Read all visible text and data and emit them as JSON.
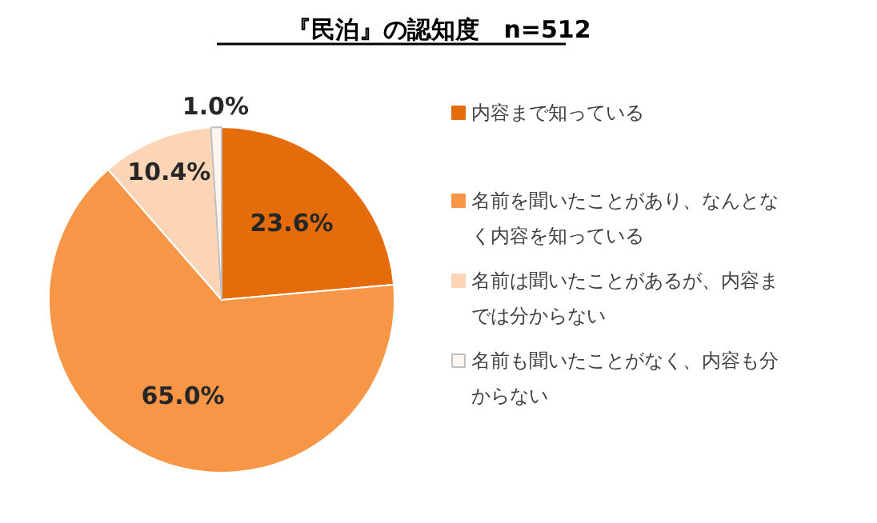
{
  "chart_data": {
    "type": "pie",
    "title": "『民泊』の認知度　n=512",
    "categories": [
      "内容まで知っている",
      "名前を聞いたことがあり、なんとなく内容を知っている",
      "名前は聞いたことがあるが、内容までは分からない",
      "名前も聞いたことがなく、内容も分からない"
    ],
    "values": [
      23.6,
      65.0,
      10.4,
      1.0
    ],
    "value_labels": [
      "23.6%",
      "65.0%",
      "10.4%",
      "1.0%"
    ],
    "colors": [
      "#e46c0a",
      "#f79646",
      "#fbd5b5",
      "#fdf6f0"
    ],
    "legend": "right"
  }
}
